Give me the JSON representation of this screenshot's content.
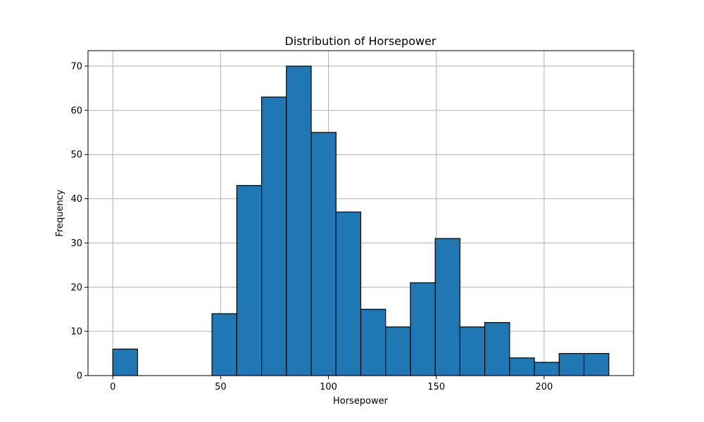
{
  "chart_data": {
    "type": "bar",
    "title": "Distribution of Horsepower",
    "xlabel": "Horsepower",
    "ylabel": "Frequency",
    "bin_width": 11.5,
    "bin_start": 0,
    "counts": [
      6,
      0,
      0,
      0,
      14,
      43,
      63,
      70,
      55,
      37,
      15,
      11,
      21,
      31,
      11,
      12,
      4,
      3,
      5,
      5
    ],
    "xlim": [
      -11.5,
      241.5
    ],
    "ylim": [
      0,
      73.5
    ],
    "x_ticks": [
      0,
      50,
      100,
      150,
      200
    ],
    "y_ticks": [
      0,
      10,
      20,
      30,
      40,
      50,
      60,
      70
    ],
    "grid": true,
    "bar_color": "#1f77b4",
    "edge_color": "#000000"
  }
}
